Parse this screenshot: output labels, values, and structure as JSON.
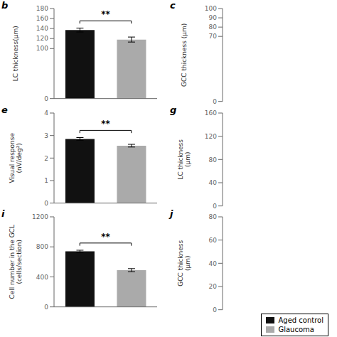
{
  "chart_data": [
    {
      "type": "bar",
      "title": "b",
      "ylabel": "LC thickness(μm)",
      "categories": [
        null,
        null
      ],
      "series": [
        {
          "name": "Aged control",
          "color": "#111111",
          "values": [
            137,
            null
          ],
          "errors": [
            4,
            null
          ]
        },
        {
          "name": "Glaucoma",
          "color": "#aaaaaa",
          "values": [
            null,
            118
          ],
          "errors": [
            null,
            5
          ]
        }
      ],
      "ylim": [
        0,
        180
      ],
      "yticks": [
        0,
        100,
        120,
        140,
        160,
        180
      ],
      "annotations": [
        "**"
      ],
      "tick_labels": "y"
    },
    {
      "type": "axes",
      "title": "c",
      "ylabel": "GCC thickness (μm)",
      "ylim": [
        0,
        100
      ],
      "yticks": [
        0,
        70,
        80,
        90,
        100
      ],
      "tick_labels": "y"
    },
    {
      "type": "bar",
      "title": "e",
      "ylabel": "Visual response\n(nV/deg²)",
      "categories": [
        null,
        null
      ],
      "series": [
        {
          "name": "Aged control",
          "color": "#111111",
          "values": [
            2.85,
            null
          ],
          "errors": [
            0.06,
            null
          ]
        },
        {
          "name": "Glaucoma",
          "color": "#aaaaaa",
          "values": [
            null,
            2.55
          ],
          "errors": [
            null,
            0.06
          ]
        }
      ],
      "ylim": [
        0,
        4
      ],
      "yticks": [
        0,
        1,
        2,
        3,
        4
      ],
      "annotations": [
        "**"
      ],
      "tick_labels": "y"
    },
    {
      "type": "axes",
      "title": "g",
      "ylabel": "LC thickness\n(μm)",
      "ylim": [
        0,
        160
      ],
      "yticks": [
        0,
        40,
        80,
        120,
        160
      ],
      "tick_labels": "y"
    },
    {
      "type": "bar",
      "title": "i",
      "ylabel": "Cell number in the GCL\n(cells/section)",
      "categories": [
        null,
        null
      ],
      "series": [
        {
          "name": "Aged control",
          "color": "#111111",
          "values": [
            740,
            null
          ],
          "errors": [
            15,
            null
          ]
        },
        {
          "name": "Glaucoma",
          "color": "#aaaaaa",
          "values": [
            null,
            490
          ],
          "errors": [
            null,
            20
          ]
        }
      ],
      "ylim": [
        0,
        1200
      ],
      "yticks": [
        0,
        400,
        800,
        1200
      ],
      "annotations": [
        "**"
      ],
      "tick_labels": "y",
      "legend": "bottom"
    },
    {
      "type": "axes",
      "title": "j",
      "ylabel": "GCC thickness\n(μm)",
      "ylim": [
        0,
        80
      ],
      "yticks": [
        0,
        20,
        40,
        60,
        80
      ],
      "tick_labels": "y"
    }
  ]
}
